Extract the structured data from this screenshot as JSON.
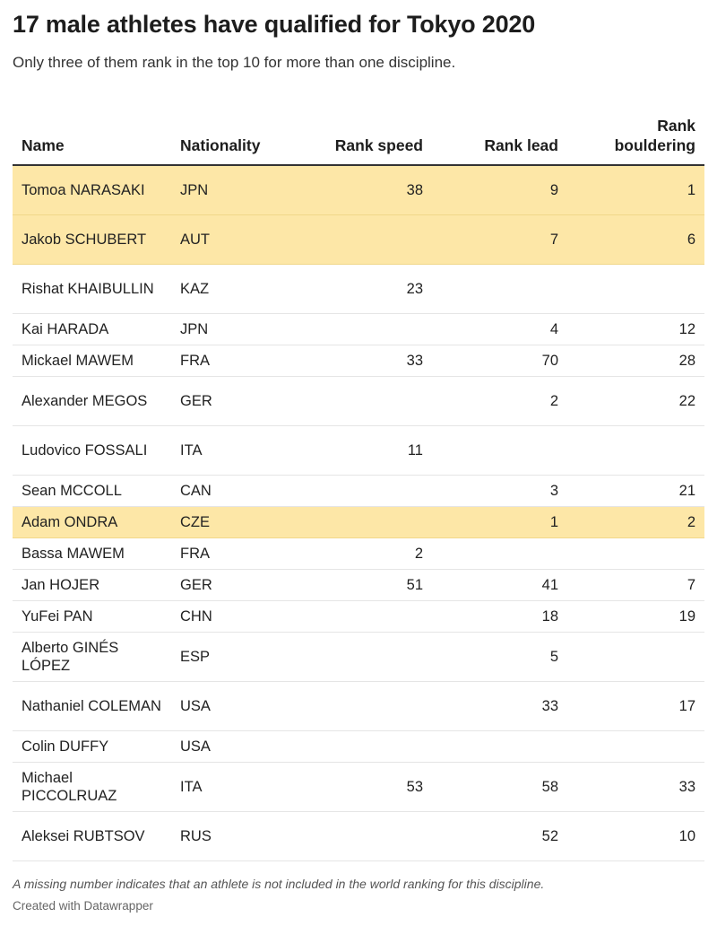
{
  "header": {
    "title": "17 male athletes have qualified for Tokyo 2020",
    "subtitle": "Only three of them rank in the top 10 for more than one discipline."
  },
  "chart_data": {
    "type": "table",
    "columns": [
      "Name",
      "Nationality",
      "Rank speed",
      "Rank lead",
      "Rank bouldering"
    ],
    "rows": [
      {
        "name": "Tomoa NARASAKI",
        "nationality": "JPN",
        "speed": "38",
        "lead": "9",
        "bouldering": "1",
        "highlight": true
      },
      {
        "name": "Jakob SCHUBERT",
        "nationality": "AUT",
        "speed": "",
        "lead": "7",
        "bouldering": "6",
        "highlight": true
      },
      {
        "name": "Rishat KHAIBULLIN",
        "nationality": "KAZ",
        "speed": "23",
        "lead": "",
        "bouldering": "",
        "highlight": false
      },
      {
        "name": "Kai HARADA",
        "nationality": "JPN",
        "speed": "",
        "lead": "4",
        "bouldering": "12",
        "highlight": false
      },
      {
        "name": "Mickael MAWEM",
        "nationality": "FRA",
        "speed": "33",
        "lead": "70",
        "bouldering": "28",
        "highlight": false
      },
      {
        "name": "Alexander MEGOS",
        "nationality": "GER",
        "speed": "",
        "lead": "2",
        "bouldering": "22",
        "highlight": false
      },
      {
        "name": "Ludovico FOSSALI",
        "nationality": "ITA",
        "speed": "11",
        "lead": "",
        "bouldering": "",
        "highlight": false
      },
      {
        "name": "Sean MCCOLL",
        "nationality": "CAN",
        "speed": "",
        "lead": "3",
        "bouldering": "21",
        "highlight": false
      },
      {
        "name": "Adam ONDRA",
        "nationality": "CZE",
        "speed": "",
        "lead": "1",
        "bouldering": "2",
        "highlight": true
      },
      {
        "name": "Bassa MAWEM",
        "nationality": "FRA",
        "speed": "2",
        "lead": "",
        "bouldering": "",
        "highlight": false
      },
      {
        "name": "Jan HOJER",
        "nationality": "GER",
        "speed": "51",
        "lead": "41",
        "bouldering": "7",
        "highlight": false
      },
      {
        "name": "YuFei PAN",
        "nationality": "CHN",
        "speed": "",
        "lead": "18",
        "bouldering": "19",
        "highlight": false
      },
      {
        "name": "Alberto GINÉS LÓPEZ",
        "nationality": "ESP",
        "speed": "",
        "lead": "5",
        "bouldering": "",
        "highlight": false
      },
      {
        "name": "Nathaniel COLEMAN",
        "nationality": "USA",
        "speed": "",
        "lead": "33",
        "bouldering": "17",
        "highlight": false
      },
      {
        "name": "Colin DUFFY",
        "nationality": "USA",
        "speed": "",
        "lead": "",
        "bouldering": "",
        "highlight": false
      },
      {
        "name": "Michael PICCOLRUAZ",
        "nationality": "ITA",
        "speed": "53",
        "lead": "58",
        "bouldering": "33",
        "highlight": false
      },
      {
        "name": "Aleksei RUBTSOV",
        "nationality": "RUS",
        "speed": "",
        "lead": "52",
        "bouldering": "10",
        "highlight": false
      }
    ],
    "highlight_color": "#fde7a7"
  },
  "footer": {
    "note": "A missing number indicates that an athlete is not included in the world ranking for this discipline.",
    "credit": "Created with Datawrapper"
  }
}
